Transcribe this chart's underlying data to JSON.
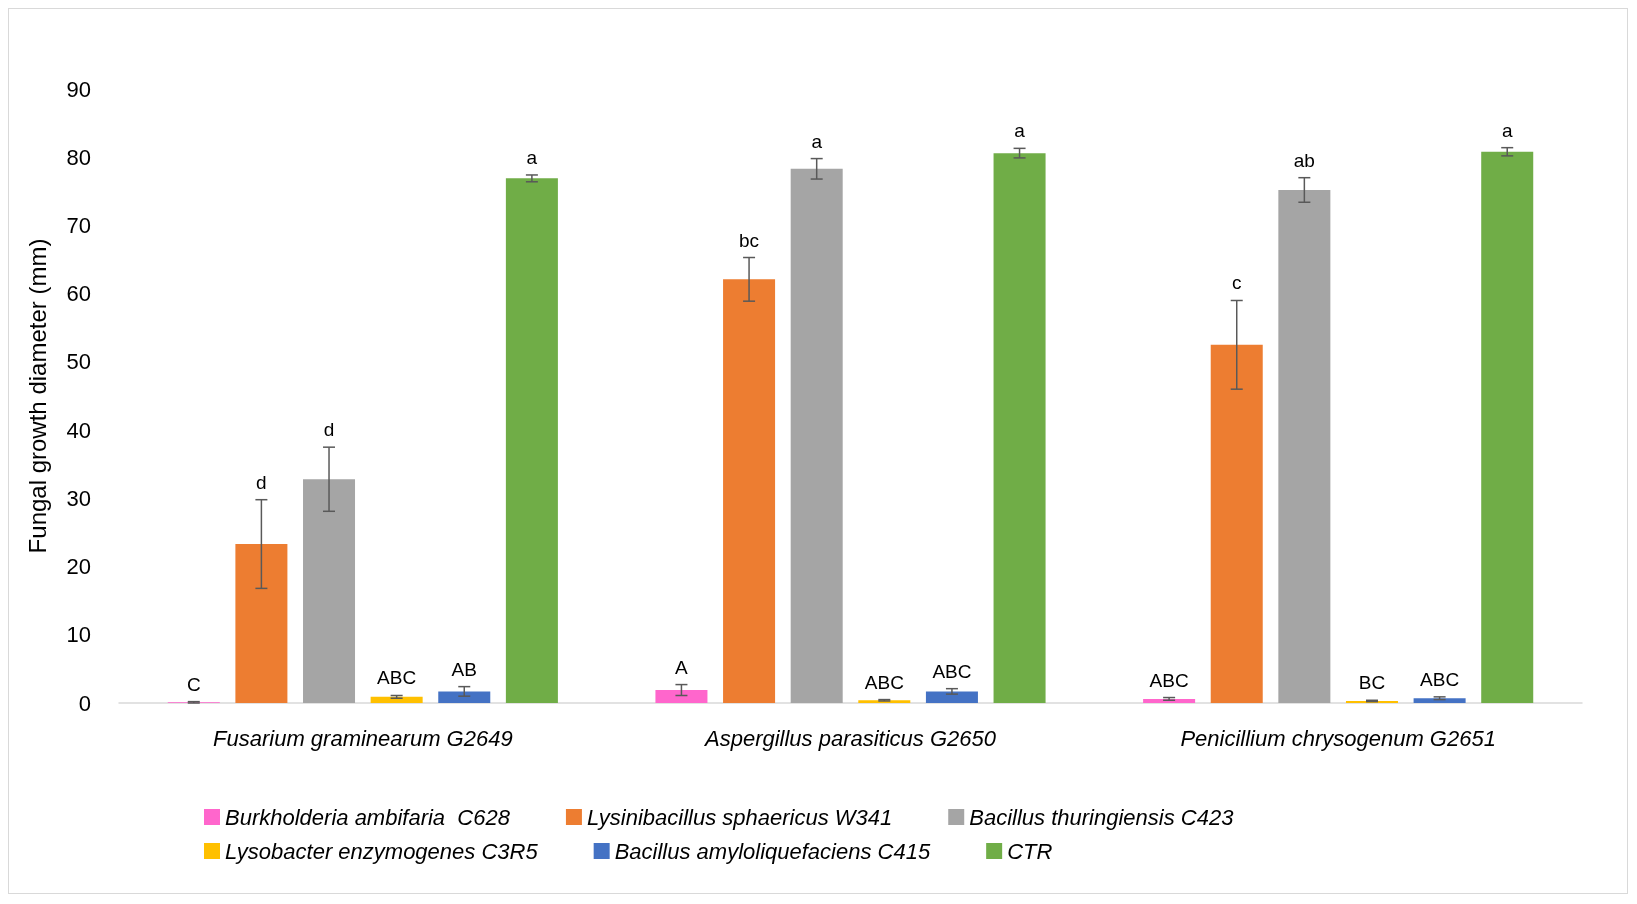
{
  "chart_data": {
    "type": "bar",
    "ylabel": "Fungal growth diameter (mm)",
    "categories": [
      "Fusarium graminearum G2649",
      "Aspergillus parasiticus G2650",
      "Penicillium chrysogenum G2651"
    ],
    "series": [
      {
        "name": "Burkholderia ambifaria  C628",
        "color": "#ff66cc",
        "values": [
          0.1,
          1.9,
          0.6
        ],
        "errors": [
          0.1,
          0.8,
          0.2
        ],
        "value_labels": [
          "C",
          "A",
          "ABC"
        ]
      },
      {
        "name": "Lysinibacillus sphaericus W341",
        "color": "#ed7d31",
        "values": [
          23.3,
          62.1,
          52.5
        ],
        "errors": [
          6.5,
          3.2,
          6.5
        ],
        "value_labels": [
          "d",
          "bc",
          "c"
        ]
      },
      {
        "name": "Bacillus thuringiensis C423",
        "color": "#a5a5a5",
        "values": [
          32.8,
          78.3,
          75.2
        ],
        "errors": [
          4.7,
          1.5,
          1.8
        ],
        "value_labels": [
          "d",
          "a",
          "ab"
        ]
      },
      {
        "name": "Lysobacter enzymogenes C3R5",
        "color": "#ffc000",
        "values": [
          0.9,
          0.4,
          0.3
        ],
        "errors": [
          0.2,
          0.1,
          0.1
        ],
        "value_labels": [
          "ABC",
          "ABC",
          "BC"
        ]
      },
      {
        "name": "Bacillus amyloliquefaciens C415",
        "color": "#4472c4",
        "values": [
          1.7,
          1.7,
          0.7
        ],
        "errors": [
          0.7,
          0.4,
          0.2
        ],
        "value_labels": [
          "AB",
          "ABC",
          "ABC"
        ]
      },
      {
        "name": "CTR",
        "color": "#70ad47",
        "values": [
          76.9,
          80.6,
          80.8
        ],
        "errors": [
          0.5,
          0.7,
          0.6
        ],
        "value_labels": [
          "a",
          "a",
          "a"
        ]
      }
    ],
    "ylim": [
      0,
      90
    ],
    "yticks": [
      0,
      10,
      20,
      30,
      40,
      50,
      60,
      70,
      80,
      90
    ],
    "grid": false,
    "legend": "bottom"
  }
}
